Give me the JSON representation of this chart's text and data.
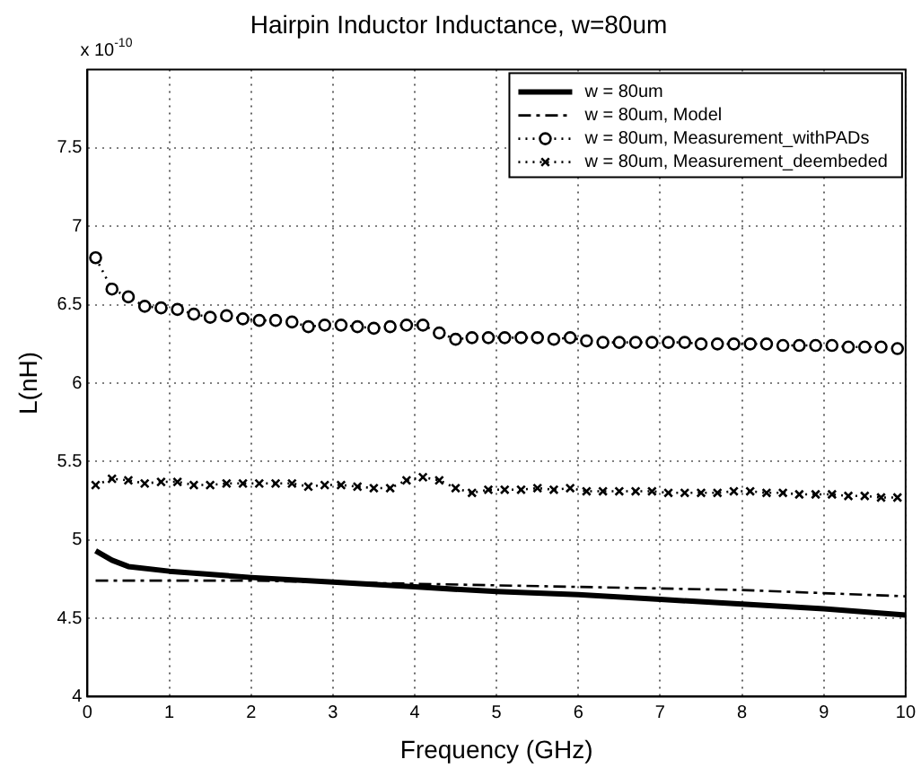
{
  "chart_data": {
    "type": "line",
    "title": "Hairpin Inductor Inductance, w=80um",
    "xlabel": "Frequency (GHz)",
    "ylabel": "L(nH)",
    "annotations": [
      "x 10$^{-10}$"
    ],
    "xlim": [
      0,
      10
    ],
    "xticks": [
      0,
      1,
      2,
      3,
      4,
      5,
      6,
      7,
      8,
      9,
      10
    ],
    "ylim": [
      4,
      8
    ],
    "yticks": [
      4,
      4.5,
      5,
      5.5,
      6,
      6.5,
      7,
      7.5
    ],
    "grid": true,
    "legend": "top right",
    "series": [
      {
        "name": "w = 80um",
        "color": "#000000",
        "line_style": "solid",
        "marker": "none",
        "x": [
          0.1,
          0.3,
          0.5,
          1,
          2,
          3,
          4,
          5,
          6,
          7,
          8,
          9,
          10
        ],
        "values": [
          4.93,
          4.87,
          4.83,
          4.8,
          4.76,
          4.73,
          4.7,
          4.67,
          4.65,
          4.62,
          4.59,
          4.56,
          4.52
        ]
      },
      {
        "name": "w = 80um, Model",
        "color": "#000000",
        "line_style": "dashed",
        "marker": "none",
        "x": [
          0.1,
          1,
          2,
          3,
          4,
          5,
          6,
          7,
          8,
          9,
          10
        ],
        "values": [
          4.74,
          4.74,
          4.74,
          4.73,
          4.72,
          4.71,
          4.7,
          4.69,
          4.68,
          4.66,
          4.64
        ]
      },
      {
        "name": "w = 80um, Measurement_withPADs",
        "color": "#000000",
        "line_style": "dotted",
        "marker": "circle",
        "x": [
          0.1,
          0.3,
          0.5,
          0.7,
          0.9,
          1.1,
          1.3,
          1.5,
          1.7,
          1.9,
          2.1,
          2.3,
          2.5,
          2.7,
          2.9,
          3.1,
          3.3,
          3.5,
          3.7,
          3.9,
          4.1,
          4.3,
          4.5,
          4.7,
          4.9,
          5.1,
          5.3,
          5.5,
          5.7,
          5.9,
          6.1,
          6.3,
          6.5,
          6.7,
          6.9,
          7.1,
          7.3,
          7.5,
          7.7,
          7.9,
          8.1,
          8.3,
          8.5,
          8.7,
          8.9,
          9.1,
          9.3,
          9.5,
          9.7,
          9.9
        ],
        "values": [
          6.8,
          6.6,
          6.55,
          6.49,
          6.48,
          6.47,
          6.44,
          6.42,
          6.43,
          6.41,
          6.4,
          6.4,
          6.39,
          6.36,
          6.37,
          6.37,
          6.36,
          6.35,
          6.36,
          6.37,
          6.37,
          6.32,
          6.28,
          6.29,
          6.29,
          6.29,
          6.29,
          6.29,
          6.28,
          6.29,
          6.27,
          6.26,
          6.26,
          6.26,
          6.26,
          6.26,
          6.26,
          6.25,
          6.25,
          6.25,
          6.25,
          6.25,
          6.24,
          6.24,
          6.24,
          6.24,
          6.23,
          6.23,
          6.23,
          6.22
        ]
      },
      {
        "name": "w = 80um, Measurement_deembeded",
        "color": "#000000",
        "line_style": "dotted",
        "marker": "cross",
        "x": [
          0.1,
          0.3,
          0.5,
          0.7,
          0.9,
          1.1,
          1.3,
          1.5,
          1.7,
          1.9,
          2.1,
          2.3,
          2.5,
          2.7,
          2.9,
          3.1,
          3.3,
          3.5,
          3.7,
          3.9,
          4.1,
          4.3,
          4.5,
          4.7,
          4.9,
          5.1,
          5.3,
          5.5,
          5.7,
          5.9,
          6.1,
          6.3,
          6.5,
          6.7,
          6.9,
          7.1,
          7.3,
          7.5,
          7.7,
          7.9,
          8.1,
          8.3,
          8.5,
          8.7,
          8.9,
          9.1,
          9.3,
          9.5,
          9.7,
          9.9
        ],
        "values": [
          5.35,
          5.39,
          5.38,
          5.36,
          5.37,
          5.37,
          5.35,
          5.35,
          5.36,
          5.36,
          5.36,
          5.36,
          5.36,
          5.34,
          5.35,
          5.35,
          5.34,
          5.33,
          5.33,
          5.38,
          5.4,
          5.38,
          5.33,
          5.3,
          5.32,
          5.32,
          5.32,
          5.33,
          5.32,
          5.33,
          5.31,
          5.31,
          5.31,
          5.31,
          5.31,
          5.3,
          5.3,
          5.3,
          5.3,
          5.31,
          5.31,
          5.3,
          5.3,
          5.29,
          5.29,
          5.29,
          5.28,
          5.28,
          5.27,
          5.27
        ]
      }
    ]
  }
}
